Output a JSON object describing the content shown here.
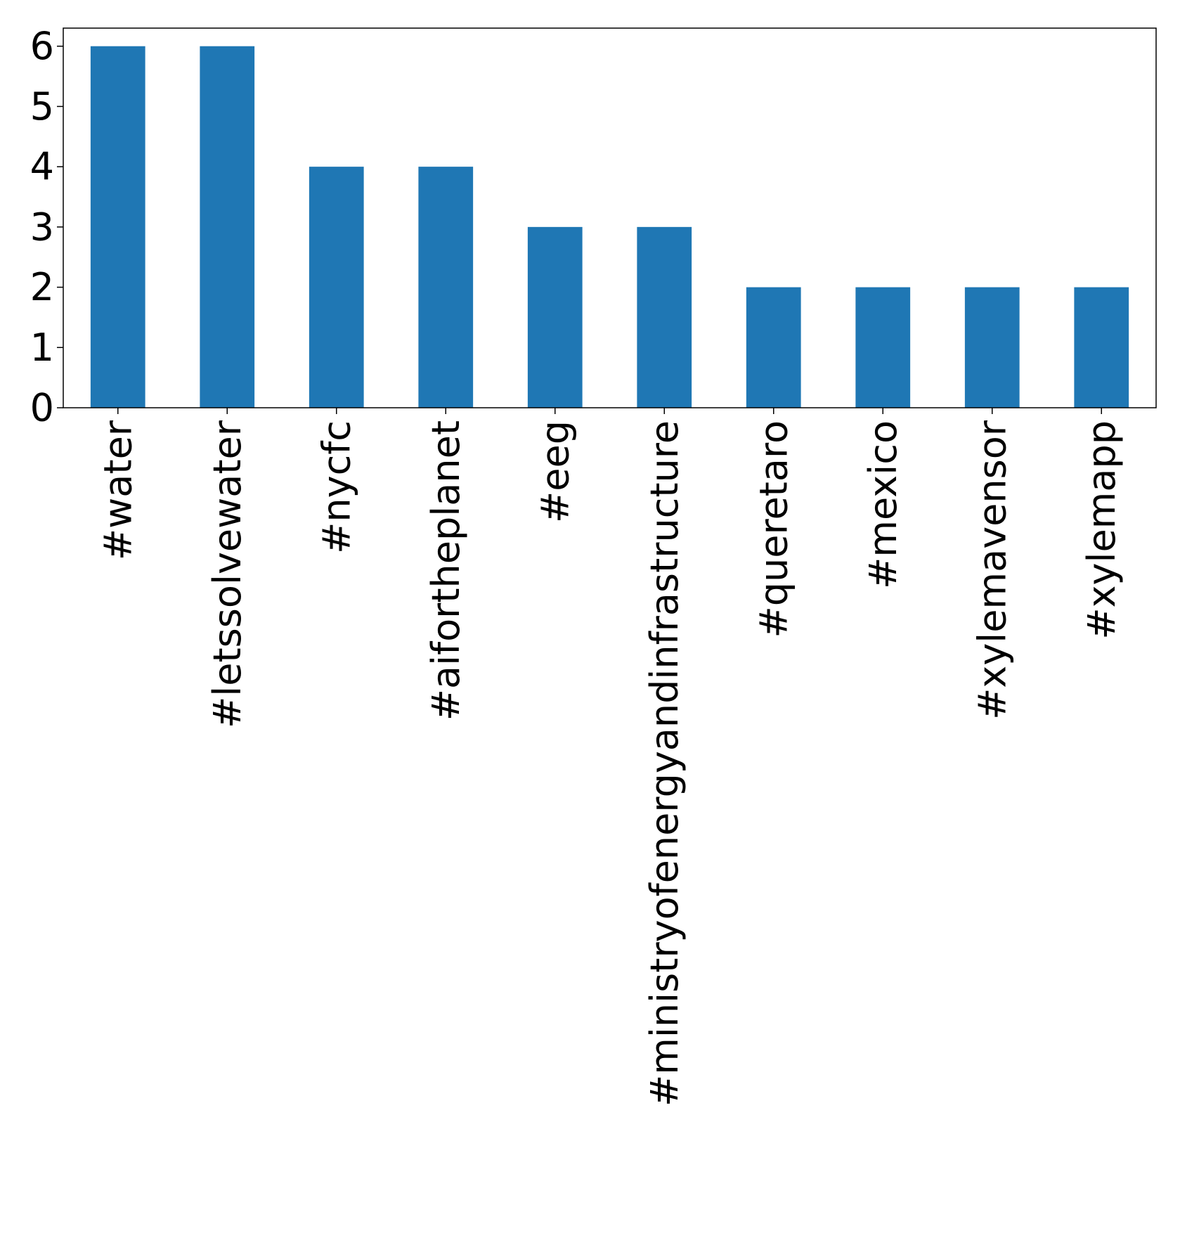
{
  "chart_data": {
    "type": "bar",
    "title": "",
    "xlabel": "",
    "ylabel": "",
    "categories": [
      "#water",
      "#letssolvewater",
      "#nycfc",
      "#aifortheplanet",
      "#eeg",
      "#ministryofenergyandinfrastructure",
      "#queretaro",
      "#mexico",
      "#xylemavensor",
      "#xylemapp"
    ],
    "values": [
      6,
      6,
      4,
      4,
      3,
      3,
      2,
      2,
      2,
      2
    ],
    "ylim": [
      0,
      6.3
    ],
    "yticks": [
      0,
      1,
      2,
      3,
      4,
      5,
      6
    ],
    "bar_color": "#1f77b4",
    "grid": false,
    "legend": "none"
  }
}
